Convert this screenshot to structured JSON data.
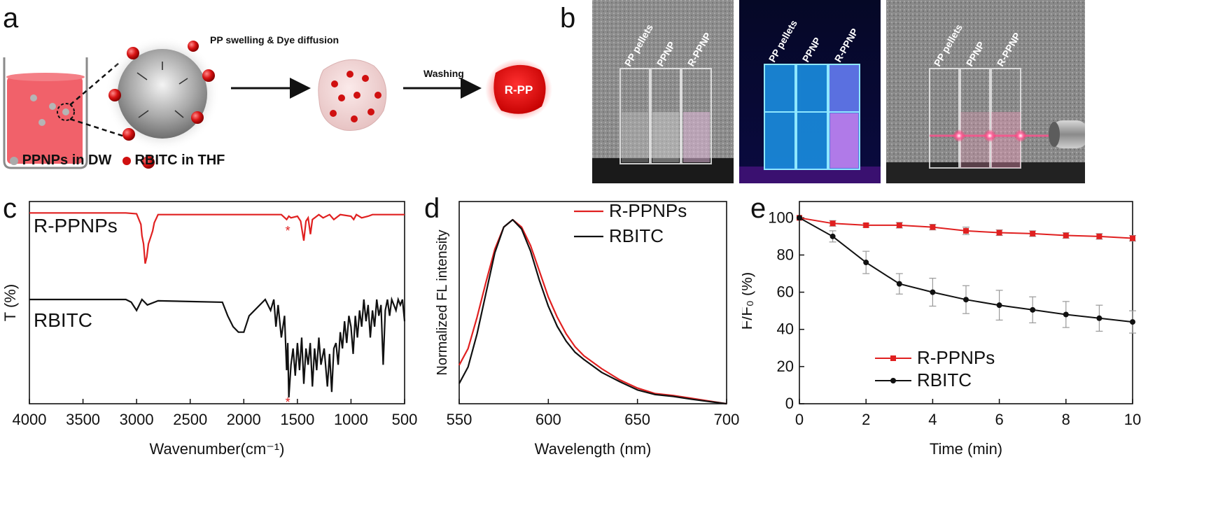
{
  "panel_a": {
    "letter": "a",
    "step1_label": "PP swelling & Dye diffusion",
    "step2_label": "Washing",
    "product_label": "R-PP",
    "legend_ppnp": "PPNPs in DW",
    "legend_rbitc": "RBITC in THF",
    "colors": {
      "solution": "#f0505a",
      "dye": "#d01010",
      "particle": "#9a9a9a"
    }
  },
  "panel_b": {
    "letter": "b",
    "photos": [
      {
        "labels": [
          "PP pellets",
          "PPNP",
          "R-PPNP"
        ],
        "lighting": "ambient"
      },
      {
        "labels": [
          "PP pellets",
          "PPNP",
          "R-PPNP"
        ],
        "lighting": "uv"
      },
      {
        "labels": [
          "PP pellets",
          "PPNP",
          "R-PPNP"
        ],
        "lighting": "laser"
      }
    ]
  },
  "chart_data": [
    {
      "panel": "c",
      "type": "line",
      "xlabel": "Wavenumber(cm⁻¹)",
      "ylabel": "T (%)",
      "x_ticks": [
        4000,
        3500,
        3000,
        2500,
        2000,
        1500,
        1000,
        500
      ],
      "xlim": [
        4000,
        500
      ],
      "x_reversed": true,
      "series": [
        {
          "name": "R-PPNPs",
          "color": "#e02020",
          "x": [
            4000,
            3100,
            3000,
            2960,
            2950,
            2935,
            2920,
            2905,
            2890,
            2870,
            2850,
            2835,
            2800,
            1650,
            1600,
            1580,
            1560,
            1500,
            1470,
            1455,
            1440,
            1420,
            1400,
            1378,
            1360,
            1300,
            1260,
            1200,
            1160,
            1100,
            1000,
            975,
            950,
            900,
            840,
            800,
            700,
            500
          ],
          "y": [
            99,
            99,
            98.5,
            92,
            85,
            80,
            68,
            72,
            80,
            84,
            88,
            93,
            98,
            98,
            95,
            97,
            96,
            97,
            94,
            88,
            82,
            94,
            96,
            86,
            95,
            98,
            96,
            98,
            95,
            98,
            97,
            95,
            98,
            96,
            97,
            98,
            98,
            98
          ]
        },
        {
          "name": "RBITC",
          "color": "#111111",
          "x": [
            4000,
            3100,
            3050,
            3000,
            2950,
            2900,
            2800,
            2200,
            2150,
            2100,
            2050,
            2000,
            1950,
            1800,
            1750,
            1720,
            1700,
            1680,
            1650,
            1620,
            1600,
            1590,
            1580,
            1560,
            1540,
            1520,
            1500,
            1480,
            1460,
            1440,
            1420,
            1400,
            1380,
            1360,
            1340,
            1320,
            1300,
            1280,
            1250,
            1220,
            1200,
            1180,
            1160,
            1140,
            1120,
            1100,
            1080,
            1060,
            1040,
            1020,
            1000,
            980,
            960,
            940,
            920,
            900,
            880,
            860,
            840,
            820,
            800,
            780,
            760,
            740,
            720,
            700,
            680,
            660,
            640,
            620,
            600,
            580,
            560,
            540,
            520,
            500
          ],
          "y": [
            76,
            76,
            75,
            72,
            76,
            74,
            75.5,
            75,
            70,
            66,
            64,
            64,
            70,
            76,
            72,
            76,
            66,
            74,
            62,
            70,
            50,
            60,
            40,
            52,
            58,
            48,
            60,
            50,
            62,
            45,
            58,
            52,
            60,
            44,
            58,
            50,
            62,
            52,
            58,
            44,
            56,
            42,
            58,
            60,
            52,
            64,
            58,
            68,
            60,
            70,
            66,
            56,
            70,
            62,
            72,
            66,
            76,
            68,
            74,
            62,
            72,
            66,
            76,
            70,
            74,
            52,
            72,
            76,
            70,
            76,
            74,
            72,
            76,
            74,
            76,
            68
          ]
        }
      ]
    },
    {
      "panel": "d",
      "type": "line",
      "xlabel": "Wavelength (nm)",
      "ylabel": "Normalized FL intensity",
      "x_ticks": [
        550,
        600,
        650,
        700
      ],
      "xlim": [
        550,
        700
      ],
      "ylim": [
        0,
        1
      ],
      "legend": "top-right",
      "series": [
        {
          "name": "R-PPNPs",
          "color": "#e02020",
          "x": [
            550,
            555,
            560,
            565,
            570,
            575,
            580,
            585,
            590,
            595,
            600,
            605,
            610,
            615,
            620,
            630,
            640,
            650,
            660,
            670,
            680,
            690,
            700
          ],
          "y": [
            0.21,
            0.3,
            0.47,
            0.66,
            0.84,
            0.96,
            1.0,
            0.96,
            0.86,
            0.72,
            0.58,
            0.47,
            0.38,
            0.31,
            0.26,
            0.19,
            0.13,
            0.085,
            0.055,
            0.045,
            0.03,
            0.015,
            0.0
          ]
        },
        {
          "name": "RBITC",
          "color": "#111111",
          "x": [
            550,
            555,
            560,
            565,
            570,
            575,
            580,
            585,
            590,
            595,
            600,
            605,
            610,
            615,
            620,
            630,
            640,
            650,
            660,
            670,
            680,
            690,
            700
          ],
          "y": [
            0.11,
            0.2,
            0.38,
            0.6,
            0.82,
            0.96,
            1.0,
            0.95,
            0.83,
            0.67,
            0.53,
            0.42,
            0.34,
            0.28,
            0.24,
            0.17,
            0.12,
            0.075,
            0.05,
            0.04,
            0.025,
            0.012,
            0.0
          ]
        }
      ]
    },
    {
      "panel": "e",
      "type": "line",
      "xlabel": "Time (min)",
      "ylabel": "F/F₀ (%)",
      "x_ticks": [
        0,
        2,
        4,
        6,
        8,
        10
      ],
      "y_ticks": [
        0,
        20,
        40,
        60,
        80,
        100
      ],
      "xlim": [
        0,
        10
      ],
      "ylim": [
        0,
        105
      ],
      "legend": "bottom-left",
      "series": [
        {
          "name": "R-PPNPs",
          "color": "#e02020",
          "marker": "square",
          "x": [
            0,
            1,
            2,
            3,
            4,
            5,
            6,
            7,
            8,
            9,
            10
          ],
          "y": [
            100,
            97,
            96,
            96,
            95,
            93,
            92,
            91.5,
            90.5,
            90,
            89
          ],
          "err": [
            0,
            1.5,
            1,
            1.5,
            1.5,
            2,
            1.5,
            1.5,
            1.5,
            1.5,
            1.5
          ]
        },
        {
          "name": "RBITC",
          "color": "#111111",
          "marker": "circle",
          "x": [
            0,
            1,
            2,
            3,
            4,
            5,
            6,
            7,
            8,
            9,
            10
          ],
          "y": [
            100,
            90,
            76,
            64.5,
            60,
            56,
            53,
            50.5,
            48,
            46,
            44
          ],
          "err": [
            0,
            3,
            6,
            5.5,
            7.5,
            7.5,
            8,
            7,
            7,
            7,
            6
          ]
        }
      ]
    }
  ]
}
